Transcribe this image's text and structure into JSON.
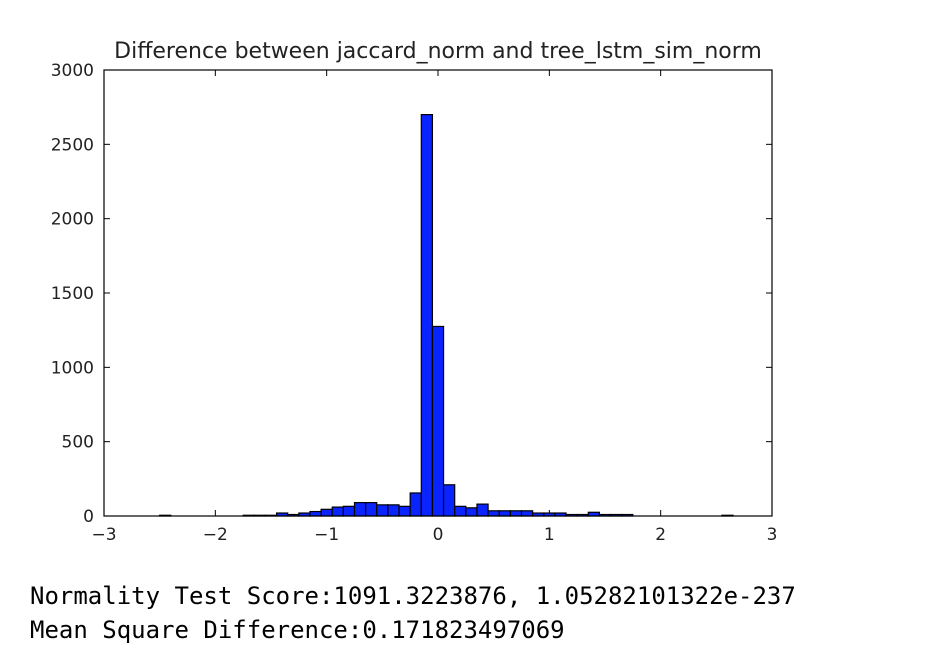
{
  "chart_data": {
    "type": "bar",
    "title": "Difference between jaccard_norm and tree_lstm_sim_norm",
    "xlabel": "",
    "ylabel": "",
    "xlim": [
      -3,
      3
    ],
    "ylim": [
      0,
      3000
    ],
    "x_ticks": [
      "−3",
      "−2",
      "−1",
      "0",
      "1",
      "2",
      "3"
    ],
    "y_ticks": [
      "0",
      "500",
      "1000",
      "1500",
      "2000",
      "2500",
      "3000"
    ],
    "bar_color": "#0a24ff",
    "bin_edges": [
      -2.5,
      -2.4,
      -1.75,
      -1.65,
      -1.55,
      -1.45,
      -1.35,
      -1.25,
      -1.15,
      -1.05,
      -0.95,
      -0.85,
      -0.75,
      -0.65,
      -0.55,
      -0.45,
      -0.35,
      -0.25,
      -0.15,
      -0.05,
      0.05,
      0.15,
      0.25,
      0.35,
      0.45,
      0.55,
      0.65,
      0.75,
      0.85,
      0.95,
      1.05,
      1.15,
      1.25,
      1.35,
      1.45,
      1.55,
      1.65,
      1.75,
      2.55,
      2.65
    ],
    "bins": [
      {
        "x0": -2.5,
        "x1": -2.4,
        "count": 5
      },
      {
        "x0": -1.75,
        "x1": -1.65,
        "count": 5
      },
      {
        "x0": -1.65,
        "x1": -1.55,
        "count": 5
      },
      {
        "x0": -1.55,
        "x1": -1.45,
        "count": 5
      },
      {
        "x0": -1.45,
        "x1": -1.35,
        "count": 20
      },
      {
        "x0": -1.35,
        "x1": -1.25,
        "count": 10
      },
      {
        "x0": -1.25,
        "x1": -1.15,
        "count": 20
      },
      {
        "x0": -1.15,
        "x1": -1.05,
        "count": 30
      },
      {
        "x0": -1.05,
        "x1": -0.95,
        "count": 45
      },
      {
        "x0": -0.95,
        "x1": -0.85,
        "count": 60
      },
      {
        "x0": -0.85,
        "x1": -0.75,
        "count": 65
      },
      {
        "x0": -0.75,
        "x1": -0.65,
        "count": 90
      },
      {
        "x0": -0.65,
        "x1": -0.55,
        "count": 90
      },
      {
        "x0": -0.55,
        "x1": -0.45,
        "count": 75
      },
      {
        "x0": -0.45,
        "x1": -0.35,
        "count": 75
      },
      {
        "x0": -0.35,
        "x1": -0.25,
        "count": 65
      },
      {
        "x0": -0.25,
        "x1": -0.15,
        "count": 155
      },
      {
        "x0": -0.15,
        "x1": -0.05,
        "count": 2700
      },
      {
        "x0": -0.05,
        "x1": 0.05,
        "count": 1275
      },
      {
        "x0": 0.05,
        "x1": 0.15,
        "count": 210
      },
      {
        "x0": 0.15,
        "x1": 0.25,
        "count": 65
      },
      {
        "x0": 0.25,
        "x1": 0.35,
        "count": 55
      },
      {
        "x0": 0.35,
        "x1": 0.45,
        "count": 80
      },
      {
        "x0": 0.45,
        "x1": 0.55,
        "count": 35
      },
      {
        "x0": 0.55,
        "x1": 0.65,
        "count": 35
      },
      {
        "x0": 0.65,
        "x1": 0.75,
        "count": 35
      },
      {
        "x0": 0.75,
        "x1": 0.85,
        "count": 35
      },
      {
        "x0": 0.85,
        "x1": 0.95,
        "count": 20
      },
      {
        "x0": 0.95,
        "x1": 1.05,
        "count": 20
      },
      {
        "x0": 1.05,
        "x1": 1.15,
        "count": 20
      },
      {
        "x0": 1.15,
        "x1": 1.25,
        "count": 10
      },
      {
        "x0": 1.25,
        "x1": 1.35,
        "count": 10
      },
      {
        "x0": 1.35,
        "x1": 1.45,
        "count": 25
      },
      {
        "x0": 1.45,
        "x1": 1.55,
        "count": 10
      },
      {
        "x0": 1.55,
        "x1": 1.65,
        "count": 10
      },
      {
        "x0": 1.65,
        "x1": 1.75,
        "count": 10
      },
      {
        "x0": 2.55,
        "x1": 2.65,
        "count": 5
      }
    ]
  },
  "stats": {
    "normality_label": "Normality Test Score:1091.3223876, 1.05282101322e-237",
    "msd_label": "Mean Square Difference:0.171823497069"
  }
}
